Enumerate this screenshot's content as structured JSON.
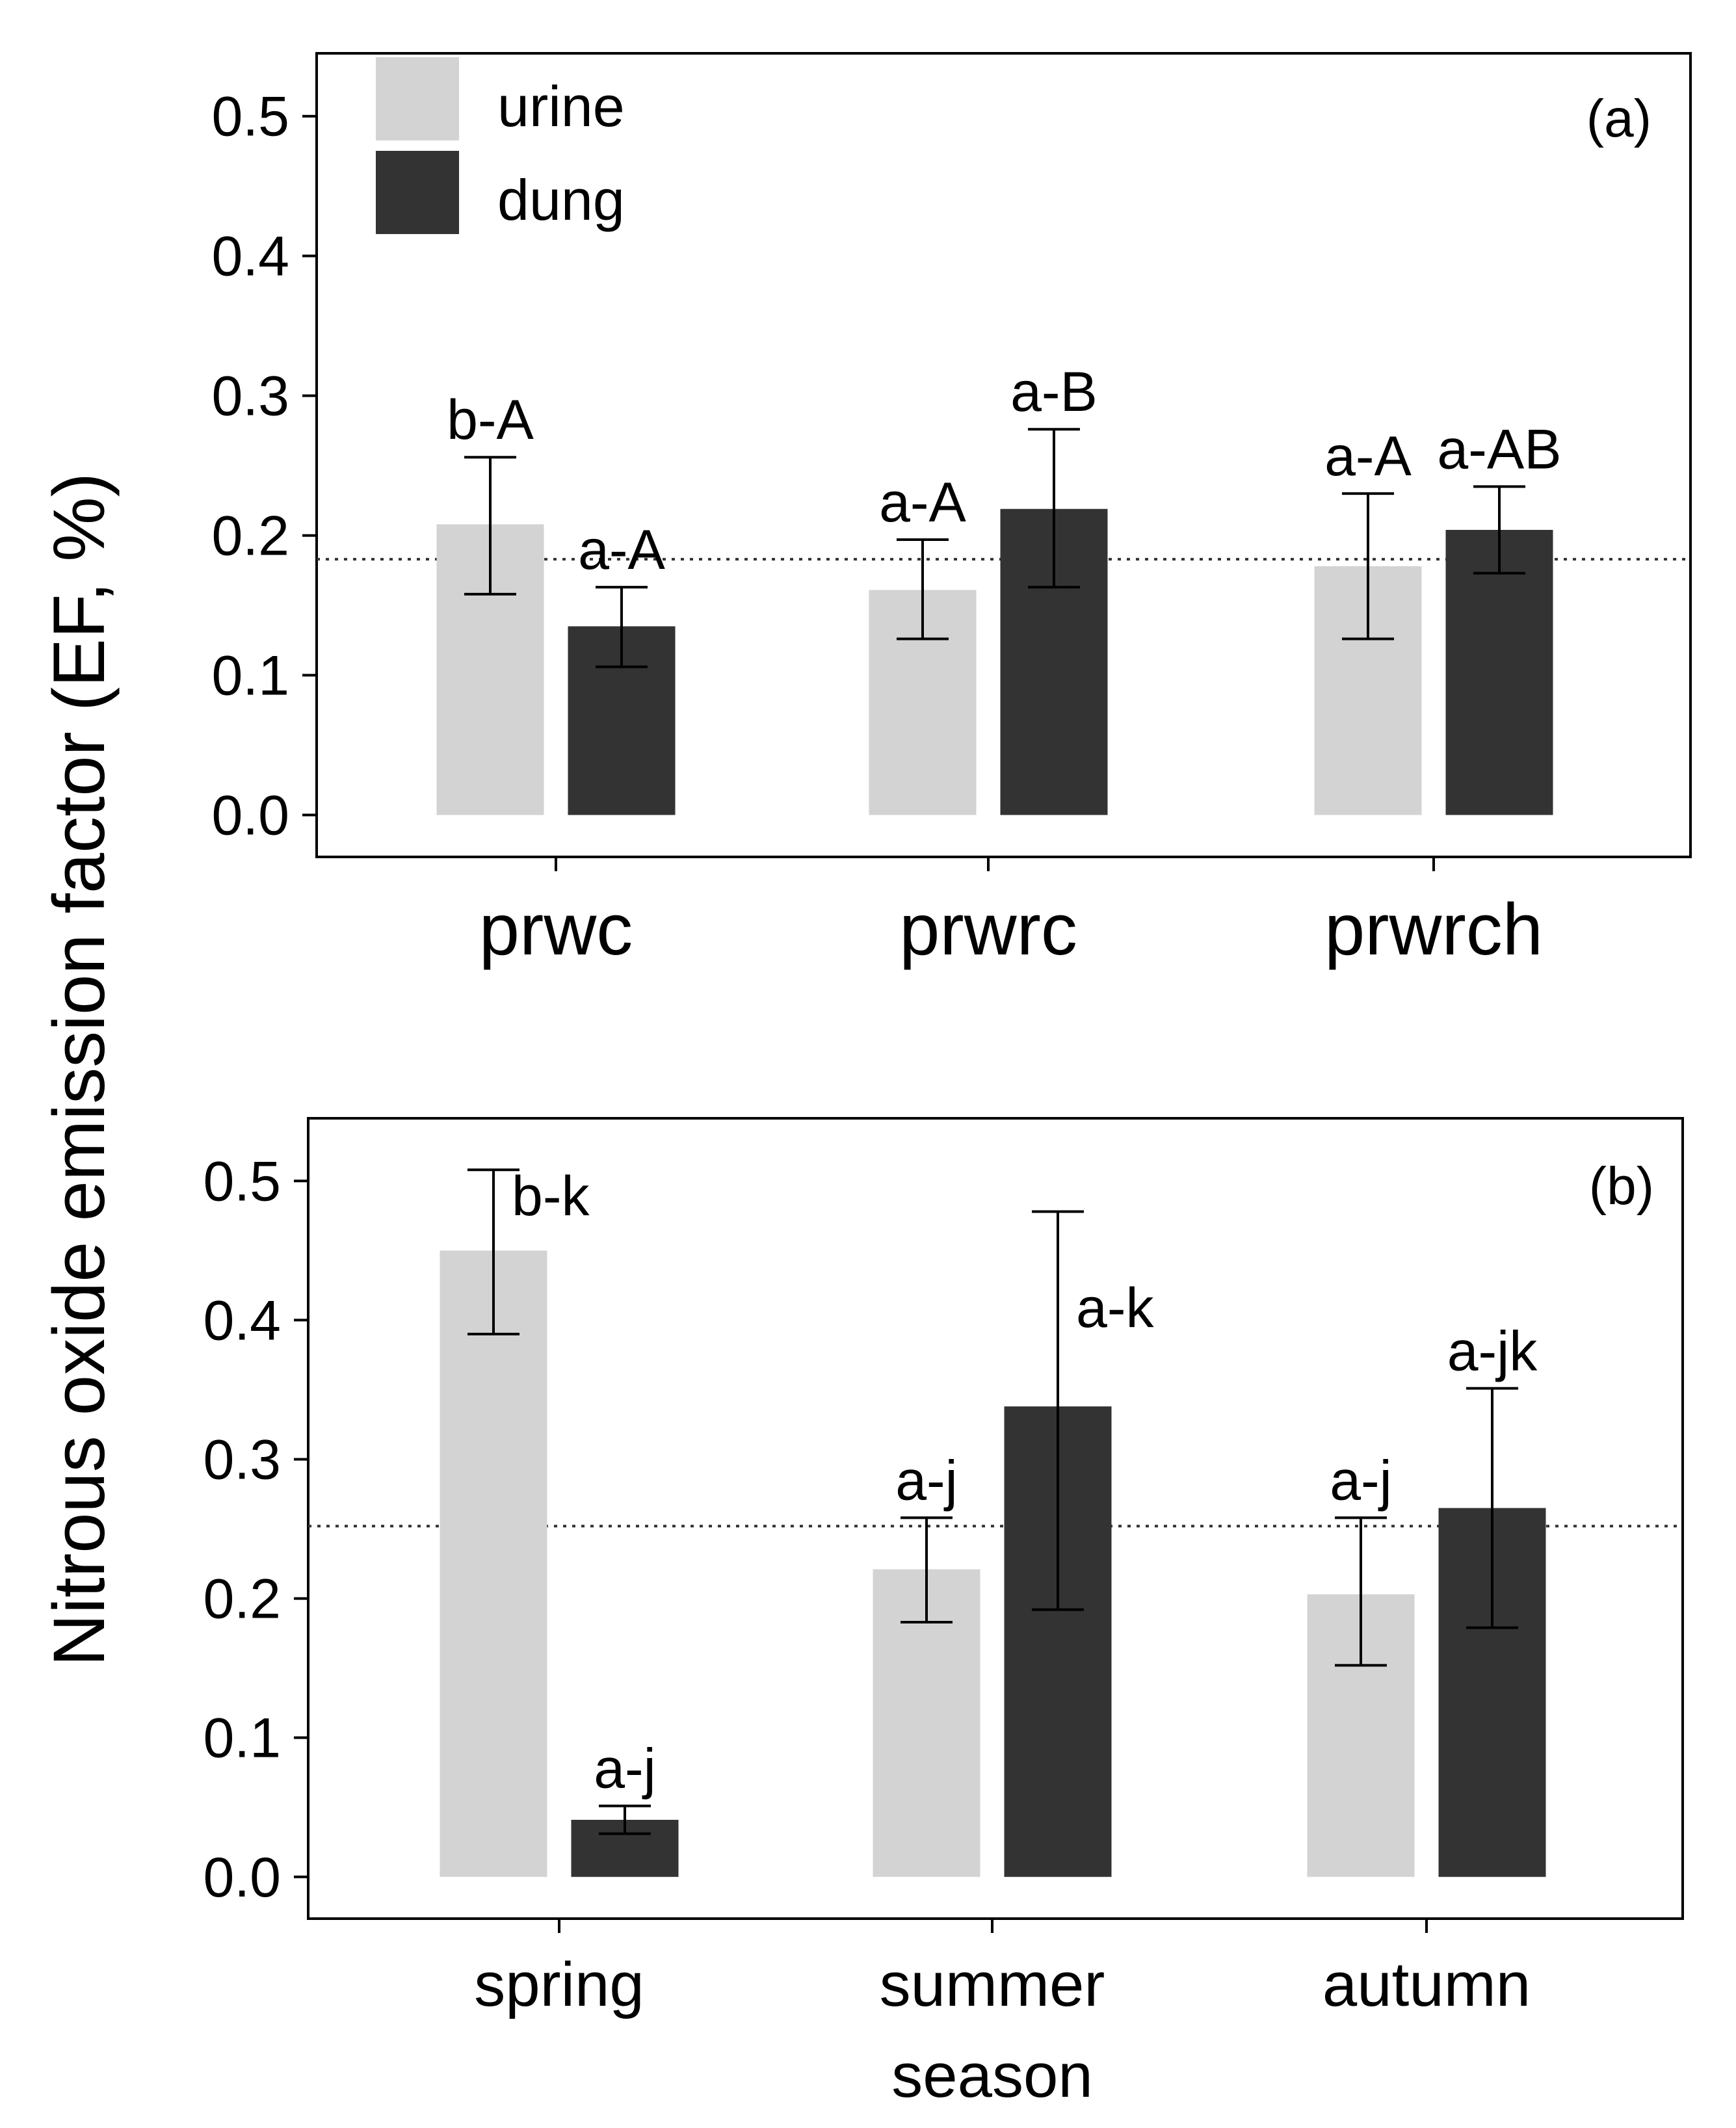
{
  "ylabel": "Nitrous oxide emission factor (EF, %)",
  "colors": {
    "urine": "#d3d3d3",
    "dung": "#333333"
  },
  "legend": [
    {
      "key": "urine",
      "label": "urine"
    },
    {
      "key": "dung",
      "label": "dung"
    }
  ],
  "chart_data": [
    {
      "type": "bar",
      "panel": "(a)",
      "categories": [
        "prwc",
        "prwrc",
        "prwrch"
      ],
      "xlabel": "",
      "ylabel": "Nitrous oxide emission factor (EF, %)",
      "ylim": [
        -0.03,
        0.545
      ],
      "yticks": [
        0.0,
        0.1,
        0.2,
        0.3,
        0.4,
        0.5
      ],
      "ytick_labels": [
        "0.0",
        "0.1",
        "0.2",
        "0.3",
        "0.4",
        "0.5"
      ],
      "reference_line": 0.183,
      "series": [
        {
          "name": "urine",
          "values": [
            0.208,
            0.161,
            0.178
          ],
          "err_low": [
            0.158,
            0.126,
            0.126
          ],
          "err_high": [
            0.256,
            0.197,
            0.23
          ],
          "labels": [
            "b-A",
            "a-A",
            "a-A"
          ]
        },
        {
          "name": "dung",
          "values": [
            0.135,
            0.219,
            0.204
          ],
          "err_low": [
            0.106,
            0.163,
            0.173
          ],
          "err_high": [
            0.163,
            0.276,
            0.235
          ],
          "labels": [
            "a-A",
            "a-B",
            "a-AB"
          ]
        }
      ]
    },
    {
      "type": "bar",
      "panel": "(b)",
      "categories": [
        "spring",
        "summer",
        "autumn"
      ],
      "xlabel": "season",
      "ylabel": "Nitrous oxide emission factor (EF, %)",
      "ylim": [
        -0.03,
        0.545
      ],
      "yticks": [
        0.0,
        0.1,
        0.2,
        0.3,
        0.4,
        0.5
      ],
      "ytick_labels": [
        "0.0",
        "0.1",
        "0.2",
        "0.3",
        "0.4",
        "0.5"
      ],
      "reference_line": 0.252,
      "series": [
        {
          "name": "urine",
          "values": [
            0.45,
            0.221,
            0.203
          ],
          "err_low": [
            0.39,
            0.183,
            0.152
          ],
          "err_high": [
            0.508,
            0.258,
            0.258
          ],
          "labels": [
            "b-k",
            "a-j",
            "a-j"
          ]
        },
        {
          "name": "dung",
          "values": [
            0.041,
            0.338,
            0.265
          ],
          "err_low": [
            0.031,
            0.192,
            0.179
          ],
          "err_high": [
            0.051,
            0.478,
            0.351
          ],
          "labels": [
            "a-j",
            "a-k",
            "a-jk"
          ]
        }
      ]
    }
  ]
}
